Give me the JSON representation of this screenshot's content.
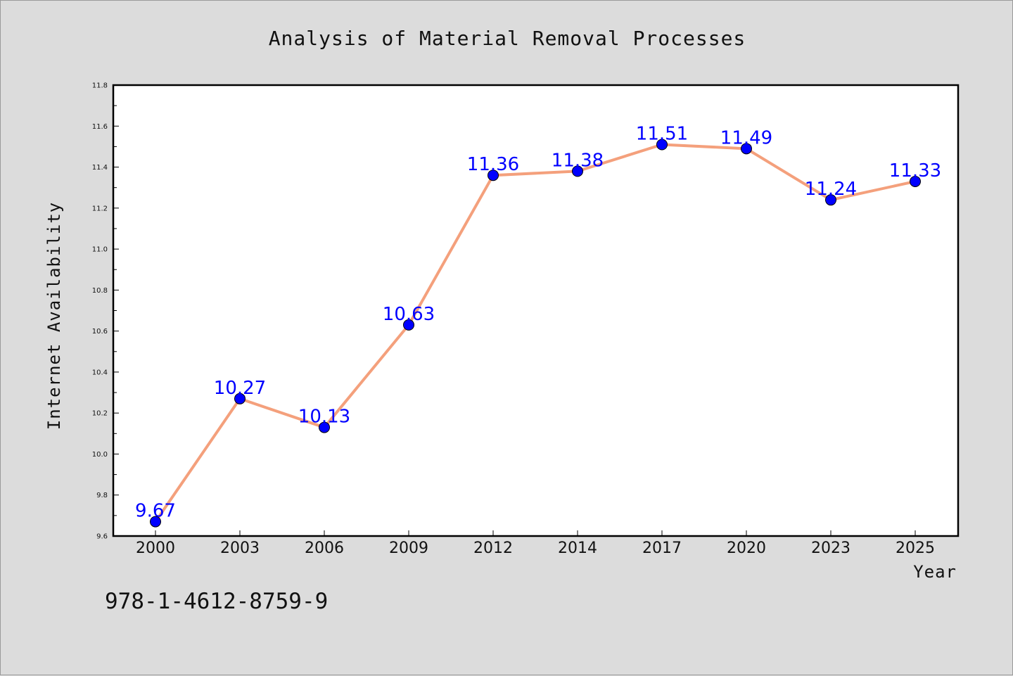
{
  "chart_data": {
    "type": "line",
    "title": "Analysis of Material Removal Processes",
    "xlabel": "Year",
    "ylabel": "Internet Availability",
    "categories": [
      "2000",
      "2003",
      "2006",
      "2009",
      "2012",
      "2014",
      "2017",
      "2020",
      "2023",
      "2025"
    ],
    "series": [
      {
        "values": [
          9.67,
          10.27,
          10.13,
          10.63,
          11.36,
          11.38,
          11.51,
          11.49,
          11.24,
          11.33
        ],
        "line_color": "#f4a07c",
        "marker_color": "#0000ff"
      }
    ],
    "data_labels": [
      "9.67",
      "10.27",
      "10.13",
      "10.63",
      "11.36",
      "11.38",
      "11.51",
      "11.49",
      "11.24",
      "11.33"
    ],
    "ylim": [
      9.6,
      11.8
    ],
    "yticks": [
      "9.6",
      "9.8",
      "10.0",
      "10.2",
      "10.4",
      "10.6",
      "10.8",
      "11.0",
      "11.2",
      "11.4",
      "11.6",
      "11.8"
    ],
    "grid": false,
    "legend": "none",
    "label_color": "#0000ff"
  },
  "annotation": {
    "isbn": "978-1-4612-8759-9"
  }
}
